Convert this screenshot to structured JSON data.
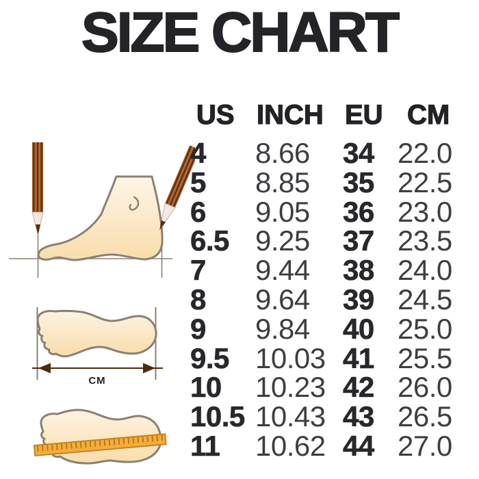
{
  "title": "SIZE CHART",
  "table": {
    "headers": [
      "US",
      "INCH",
      "EU",
      "CM"
    ],
    "rows": [
      [
        "4",
        "8.66",
        "34",
        "22.0"
      ],
      [
        "5",
        "8.85",
        "35",
        "22.5"
      ],
      [
        "6",
        "9.05",
        "36",
        "23.0"
      ],
      [
        "6.5",
        "9.25",
        "37",
        "23.5"
      ],
      [
        "7",
        "9.44",
        "38",
        "24.0"
      ],
      [
        "8",
        "9.64",
        "39",
        "24.5"
      ],
      [
        "9",
        "9.84",
        "40",
        "25.0"
      ],
      [
        "9.5",
        "10.03",
        "41",
        "25.5"
      ],
      [
        "10",
        "10.23",
        "42",
        "26.0"
      ],
      [
        "10.5",
        "10.43",
        "43",
        "26.5"
      ],
      [
        "11",
        "10.62",
        "44",
        "27.0"
      ]
    ]
  },
  "illustration": {
    "cm_label": "CM"
  },
  "colors": {
    "text_dark": "#28282c",
    "text_regular": "#3e3e42",
    "outline_gray": "#8a8173",
    "foot_fill_light": "#fdf5e8",
    "foot_fill_peach": "#f9ddab",
    "pencil_brown": "#9c5724",
    "pencil_dark_stripe": "#5f2f10",
    "pencil_tip_wood": "#f7e6e2",
    "pencil_lead": "#5a2c12",
    "ruler_orange": "#f6ac3c",
    "ruler_tick": "#b87818",
    "arrow_brown": "#4a2b10"
  },
  "chart_data": {
    "type": "table",
    "title": "SIZE CHART",
    "columns": [
      "US",
      "INCH",
      "EU",
      "CM"
    ],
    "rows": [
      [
        4,
        8.66,
        34,
        22.0
      ],
      [
        5,
        8.85,
        35,
        22.5
      ],
      [
        6,
        9.05,
        36,
        23.0
      ],
      [
        6.5,
        9.25,
        37,
        23.5
      ],
      [
        7,
        9.44,
        38,
        24.0
      ],
      [
        8,
        9.64,
        39,
        24.5
      ],
      [
        9,
        9.84,
        40,
        25.0
      ],
      [
        9.5,
        10.03,
        41,
        25.5
      ],
      [
        10,
        10.23,
        42,
        26.0
      ],
      [
        10.5,
        10.43,
        43,
        26.5
      ],
      [
        11,
        10.62,
        44,
        27.0
      ]
    ]
  }
}
